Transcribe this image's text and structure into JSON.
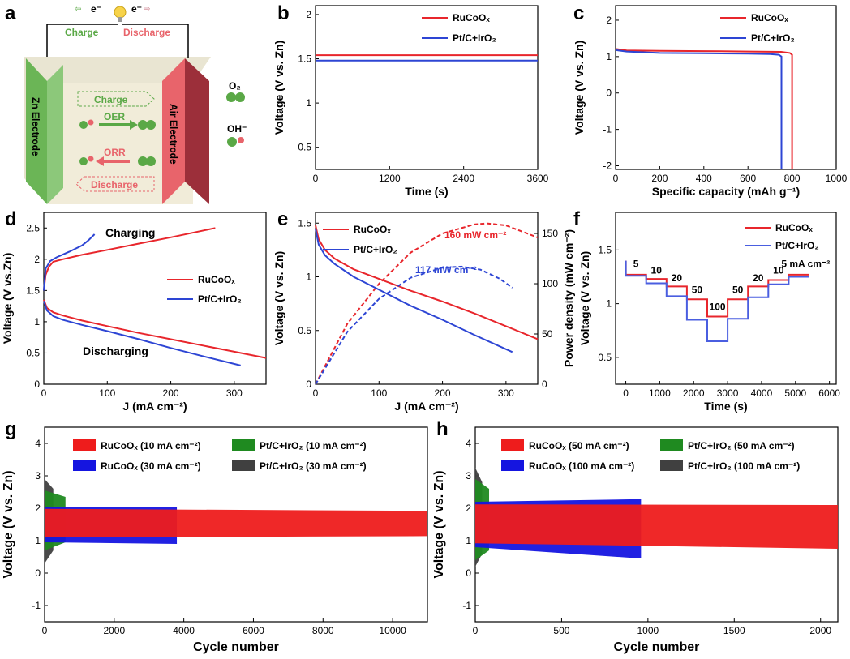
{
  "panel_labels": [
    "a",
    "b",
    "c",
    "d",
    "e",
    "f",
    "g",
    "h"
  ],
  "schematic": {
    "electron_left": "e⁻",
    "electron_right": "e⁻",
    "charge_top": "Charge",
    "discharge_top": "Discharge",
    "zn_electrode": "Zn Electrode",
    "air_electrode": "Air Electrode",
    "inner_charge": "Charge",
    "oer": "OER",
    "orr": "ORR",
    "inner_discharge": "Discharge",
    "o2": "O₂",
    "oh": "OH⁻",
    "colors": {
      "green": "#5aa846",
      "red": "#e8646b",
      "box": "#f1ecd9"
    }
  },
  "chart_data": [
    {
      "panel": "b",
      "type": "line",
      "xlabel": "Time (s)",
      "ylabel": "Voltage (V vs. Zn)",
      "xlim": [
        0,
        3600
      ],
      "ylim": [
        0.25,
        2.1
      ],
      "xticks": [
        0,
        1200,
        2400,
        3600
      ],
      "yticks": [
        0.5,
        1,
        1.5,
        2
      ],
      "legend_position": "top-right",
      "series": [
        {
          "name": "RuCoOₓ",
          "color": "#e8262c",
          "x": [
            0,
            3600
          ],
          "y": [
            1.54,
            1.54
          ]
        },
        {
          "name": "Pt/C+IrO₂",
          "color": "#2d45d4",
          "x": [
            0,
            3600
          ],
          "y": [
            1.48,
            1.48
          ]
        }
      ]
    },
    {
      "panel": "c",
      "type": "line",
      "xlabel": "Specific capacity (mAh g⁻¹)",
      "ylabel": "Voltage (V vs. Zn)",
      "xlim": [
        0,
        1000
      ],
      "ylim": [
        -2.1,
        2.4
      ],
      "xticks": [
        0,
        200,
        400,
        600,
        800,
        1000
      ],
      "yticks": [
        -2,
        -1,
        0,
        1,
        2
      ],
      "legend_position": "top-right",
      "series": [
        {
          "name": "RuCoOₓ",
          "color": "#e8262c",
          "x": [
            0,
            50,
            200,
            400,
            600,
            750,
            790,
            800,
            800
          ],
          "y": [
            1.21,
            1.17,
            1.16,
            1.15,
            1.14,
            1.13,
            1.1,
            1.05,
            -2.1
          ]
        },
        {
          "name": "Pt/C+IrO₂",
          "color": "#2d45d4",
          "x": [
            0,
            50,
            200,
            400,
            600,
            700,
            740,
            752,
            752
          ],
          "y": [
            1.18,
            1.14,
            1.1,
            1.09,
            1.08,
            1.07,
            1.05,
            1.0,
            -2.1
          ]
        }
      ]
    },
    {
      "panel": "d",
      "type": "line",
      "xlabel": "J (mA cm⁻²)",
      "ylabel": "Voltage (V vs.Zn)",
      "xlim": [
        0,
        350
      ],
      "ylim": [
        0,
        2.75
      ],
      "xticks": [
        0,
        100,
        200,
        300
      ],
      "yticks": [
        0,
        0.5,
        1,
        1.5,
        2,
        2.5
      ],
      "annotations": [
        "Charging",
        "Discharging"
      ],
      "legend_position": "center-right",
      "series": [
        {
          "name": "RuCoOₓ",
          "color": "#e8262c",
          "charge": {
            "x": [
              0,
              3,
              8,
              15,
              30,
              60,
              100,
              150,
              200,
              270
            ],
            "y": [
              1.5,
              1.75,
              1.88,
              1.96,
              2.0,
              2.07,
              2.15,
              2.25,
              2.35,
              2.5
            ]
          },
          "discharge": {
            "x": [
              0,
              5,
              15,
              30,
              60,
              100,
              150,
              200,
              250,
              300,
              350
            ],
            "y": [
              1.35,
              1.22,
              1.15,
              1.1,
              1.02,
              0.93,
              0.82,
              0.72,
              0.62,
              0.52,
              0.42
            ]
          }
        },
        {
          "name": "Pt/C+IrO₂",
          "color": "#2d45d4",
          "charge": {
            "x": [
              0,
              3,
              10,
              20,
              40,
              60,
              70,
              80
            ],
            "y": [
              1.5,
              1.85,
              1.97,
              2.03,
              2.12,
              2.22,
              2.3,
              2.4
            ]
          },
          "discharge": {
            "x": [
              0,
              5,
              15,
              30,
              60,
              100,
              150,
              200,
              250,
              310
            ],
            "y": [
              1.33,
              1.18,
              1.09,
              1.03,
              0.95,
              0.85,
              0.72,
              0.58,
              0.45,
              0.3
            ]
          }
        }
      ]
    },
    {
      "panel": "e",
      "type": "line",
      "xlabel": "J (mA cm⁻²)",
      "ylabel": "Voltage (V vs. Zn)",
      "y2label": "Power density (mW cm⁻²)",
      "xlim": [
        0,
        350
      ],
      "ylim": [
        0,
        1.6
      ],
      "y2lim": [
        0,
        171
      ],
      "xticks": [
        0,
        100,
        200,
        300
      ],
      "yticks": [
        0,
        0.5,
        1,
        1.5
      ],
      "y2ticks": [
        0,
        50,
        100,
        150
      ],
      "annotations": [
        "160 mW cm⁻²",
        "117 mW cm⁻²"
      ],
      "legend_position": "top-left",
      "series": [
        {
          "name": "RuCoOₓ",
          "color": "#e8262c",
          "voltage": {
            "x": [
              0,
              5,
              15,
              30,
              60,
              100,
              150,
              200,
              250,
              300,
              350
            ],
            "y": [
              1.48,
              1.35,
              1.25,
              1.17,
              1.07,
              0.98,
              0.87,
              0.77,
              0.66,
              0.54,
              0.42
            ]
          },
          "power": {
            "x": [
              0,
              50,
              100,
              150,
              200,
              250,
              270,
              300,
              350
            ],
            "y": [
              0,
              60,
              100,
              131,
              150,
              159,
              160,
              158,
              146
            ]
          }
        },
        {
          "name": "Pt/C+IrO₂",
          "color": "#2d45d4",
          "voltage": {
            "x": [
              0,
              5,
              15,
              30,
              60,
              100,
              150,
              200,
              250,
              310
            ],
            "y": [
              1.45,
              1.3,
              1.2,
              1.12,
              1.0,
              0.88,
              0.73,
              0.6,
              0.46,
              0.3
            ]
          },
          "power": {
            "x": [
              0,
              50,
              100,
              150,
              200,
              230,
              260,
              290,
              310
            ],
            "y": [
              0,
              52,
              85,
              106,
              116,
              117,
              114,
              105,
              96
            ]
          }
        }
      ]
    },
    {
      "panel": "f",
      "type": "line",
      "xlabel": "Time (s)",
      "ylabel": "Voltage (V vs. Zn)",
      "xlim": [
        -300,
        6200
      ],
      "ylim": [
        0.25,
        1.85
      ],
      "xticks": [
        0,
        1000,
        2000,
        3000,
        4000,
        5000,
        6000
      ],
      "yticks": [
        0.5,
        1,
        1.5
      ],
      "step_labels": [
        "5",
        "10",
        "20",
        "50",
        "100",
        "50",
        "20",
        "10",
        "5 mA cm⁻²"
      ],
      "legend_position": "top-right",
      "series": [
        {
          "name": "RuCoOₓ",
          "color": "#e8262c",
          "t": [
            0,
            600,
            1200,
            1800,
            2400,
            3000,
            3600,
            4200,
            4800,
            5400
          ],
          "v": [
            1.27,
            1.23,
            1.16,
            1.04,
            0.88,
            1.04,
            1.16,
            1.22,
            1.27
          ]
        },
        {
          "name": "Pt/C+IrO₂",
          "color": "#4a5ee0",
          "t": [
            0,
            600,
            1200,
            1800,
            2400,
            3000,
            3600,
            4200,
            4800,
            5400
          ],
          "v": [
            1.26,
            1.19,
            1.07,
            0.85,
            0.65,
            0.86,
            1.06,
            1.18,
            1.25
          ]
        }
      ]
    },
    {
      "panel": "g",
      "type": "line",
      "xlabel": "Cycle number",
      "ylabel": "Voltage (V vs. Zn)",
      "xlim": [
        0,
        11000
      ],
      "ylim": [
        -1.5,
        4.5
      ],
      "xticks": [
        0,
        2000,
        4000,
        6000,
        8000,
        10000
      ],
      "yticks": [
        -1,
        0,
        1,
        2,
        3,
        4
      ],
      "legend_position": "top",
      "series": [
        {
          "name": "RuCoOₓ (10 mA cm⁻²)",
          "color": "#ee1c1c",
          "x_end": 11000,
          "upper": [
            1.98,
            1.92
          ],
          "lower": [
            1.1,
            1.14
          ]
        },
        {
          "name": "Pt/C+IrO₂ (10 mA cm⁻²)",
          "color": "#1f8a20",
          "x_end": 600,
          "upper": [
            2.55,
            2.35
          ],
          "lower": [
            0.7,
            0.95
          ]
        },
        {
          "name": "RuCoOₓ (30 mA cm⁻²)",
          "color": "#1515e0",
          "x_end": 3800,
          "upper": [
            2.05,
            2.05
          ],
          "lower": [
            0.95,
            0.9
          ]
        },
        {
          "name": "Pt/C+IrO₂ (30 mA cm⁻²)",
          "color": "#404040",
          "x_end": 250,
          "upper": [
            2.9,
            2.6
          ],
          "lower": [
            0.3,
            0.7
          ]
        }
      ]
    },
    {
      "panel": "h",
      "type": "line",
      "xlabel": "Cycle number",
      "ylabel": "Voltage (V vs. Zn)",
      "xlim": [
        0,
        2100
      ],
      "ylim": [
        -1.5,
        4.5
      ],
      "xticks": [
        0,
        500,
        1000,
        1500,
        2000
      ],
      "yticks": [
        -1,
        0,
        1,
        2,
        3,
        4
      ],
      "legend_position": "top",
      "series": [
        {
          "name": "RuCoOₓ (50 mA cm⁻²)",
          "color": "#ee1c1c",
          "x_end": 2100,
          "upper": [
            2.12,
            2.1
          ],
          "lower": [
            0.92,
            0.75
          ]
        },
        {
          "name": "Pt/C+IrO₂ (50 mA cm⁻²)",
          "color": "#1f8a20",
          "x_end": 80,
          "upper": [
            2.9,
            2.6
          ],
          "lower": [
            0.4,
            0.7
          ]
        },
        {
          "name": "RuCoOₓ (100 mA cm⁻²)",
          "color": "#1515e0",
          "x_end": 960,
          "upper": [
            2.2,
            2.28
          ],
          "lower": [
            0.8,
            0.45
          ]
        },
        {
          "name": "Pt/C+IrO₂ (100 mA cm⁻²)",
          "color": "#404040",
          "x_end": 40,
          "upper": [
            3.25,
            2.8
          ],
          "lower": [
            0.2,
            0.6
          ]
        }
      ]
    }
  ]
}
